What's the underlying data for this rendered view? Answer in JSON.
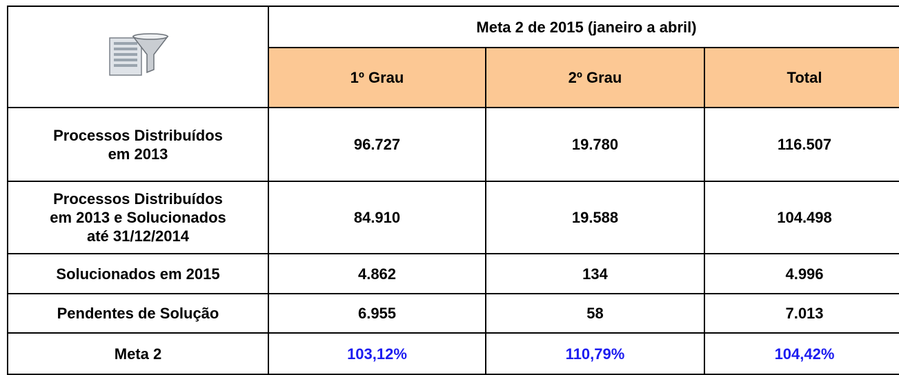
{
  "table": {
    "title": "Meta 2 de 2015 (janeiro a abril)",
    "columns": [
      "1º Grau",
      "2º Grau",
      "Total"
    ],
    "rows": [
      {
        "label": [
          "Processos Distribuídos",
          "em 2013"
        ],
        "cells": [
          "96.727",
          "19.780",
          "116.507"
        ]
      },
      {
        "label": [
          "Processos Distribuídos",
          "em 2013 e Solucionados",
          "até 31/12/2014"
        ],
        "cells": [
          "84.910",
          "19.588",
          "104.498"
        ]
      },
      {
        "label": [
          "Solucionados em 2015"
        ],
        "cells": [
          "4.862",
          "134",
          "4.996"
        ]
      },
      {
        "label": [
          "Pendentes de Solução"
        ],
        "cells": [
          "6.955",
          "58",
          "7.013"
        ]
      },
      {
        "label": [
          "Meta 2"
        ],
        "cells": [
          "103,12%",
          "110,79%",
          "104,42%"
        ],
        "highlight": true
      }
    ]
  }
}
